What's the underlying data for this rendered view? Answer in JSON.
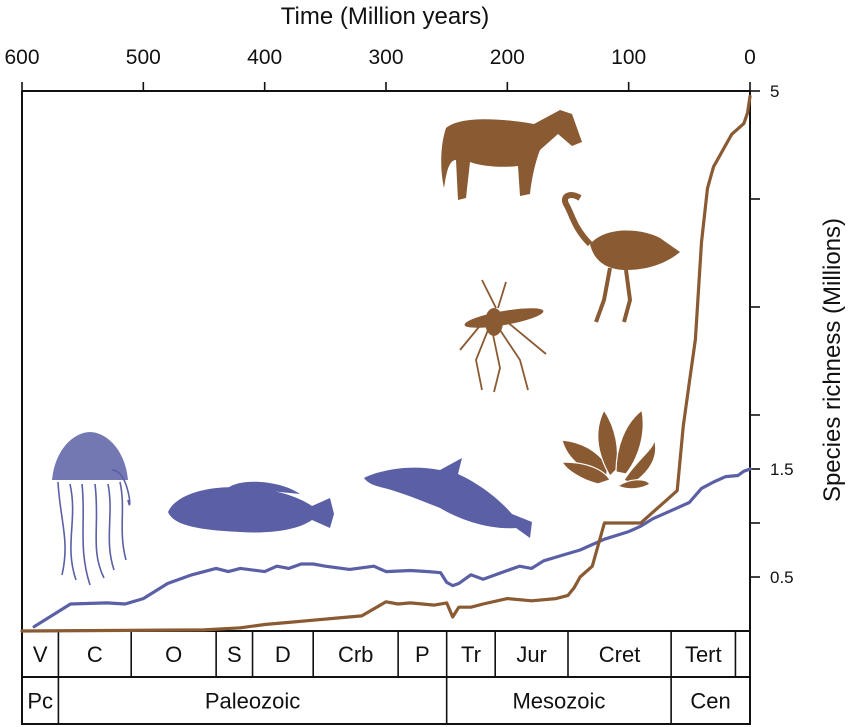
{
  "chart_data": {
    "type": "line",
    "xlabel": "Time (Million years)",
    "ylabel": "Species richness (Millions)",
    "x_axis_position": "top",
    "y_axis_position": "right",
    "x_reversed": true,
    "xlim": [
      600,
      0
    ],
    "ylim": [
      0,
      5
    ],
    "x_ticks": [
      600,
      500,
      400,
      300,
      200,
      100,
      0
    ],
    "x_tick_labels": [
      "600",
      "500",
      "400",
      "300",
      "200",
      "100",
      "0"
    ],
    "y_ticks": [
      0.5,
      1,
      1.5,
      2,
      3,
      4,
      5
    ],
    "y_tick_labels": [
      "0.5",
      "",
      "1.5",
      "",
      "",
      "",
      "5"
    ],
    "grid": false,
    "colors": {
      "marine": "#5b60a6",
      "terrestrial": "#8a5a33"
    },
    "series": [
      {
        "key": "marine",
        "x": [
          590,
          560,
          530,
          515,
          500,
          480,
          460,
          440,
          430,
          420,
          400,
          390,
          380,
          370,
          360,
          350,
          330,
          310,
          300,
          280,
          265,
          255,
          250,
          245,
          240,
          230,
          220,
          200,
          190,
          180,
          170,
          155,
          140,
          120,
          100,
          90,
          80,
          70,
          60,
          50,
          40,
          30,
          20,
          10,
          5,
          0
        ],
        "y": [
          0.04,
          0.25,
          0.26,
          0.25,
          0.3,
          0.44,
          0.52,
          0.58,
          0.55,
          0.58,
          0.55,
          0.6,
          0.58,
          0.62,
          0.62,
          0.6,
          0.57,
          0.6,
          0.55,
          0.56,
          0.55,
          0.54,
          0.45,
          0.42,
          0.44,
          0.52,
          0.48,
          0.56,
          0.6,
          0.58,
          0.65,
          0.7,
          0.75,
          0.85,
          0.92,
          0.97,
          1.04,
          1.09,
          1.14,
          1.19,
          1.32,
          1.38,
          1.43,
          1.44,
          1.48,
          1.5
        ]
      },
      {
        "key": "terrestrial",
        "x": [
          600,
          450,
          420,
          400,
          380,
          360,
          340,
          320,
          300,
          290,
          280,
          260,
          250,
          245,
          240,
          230,
          220,
          200,
          180,
          160,
          150,
          145,
          140,
          130,
          120,
          100,
          90,
          80,
          70,
          60,
          55,
          50,
          45,
          40,
          35,
          30,
          25,
          20,
          15,
          10,
          5,
          2,
          0
        ],
        "y": [
          0.0,
          0.01,
          0.03,
          0.06,
          0.08,
          0.1,
          0.12,
          0.14,
          0.27,
          0.25,
          0.26,
          0.24,
          0.26,
          0.13,
          0.22,
          0.22,
          0.25,
          0.3,
          0.28,
          0.3,
          0.33,
          0.4,
          0.5,
          0.6,
          1.0,
          1.0,
          1.0,
          1.1,
          1.2,
          1.3,
          1.9,
          2.3,
          2.7,
          3.6,
          4.1,
          4.3,
          4.4,
          4.5,
          4.6,
          4.65,
          4.7,
          4.8,
          4.95
        ]
      }
    ],
    "periods": [
      {
        "label": "V",
        "start": 600,
        "end": 570
      },
      {
        "label": "C",
        "start": 570,
        "end": 510
      },
      {
        "label": "O",
        "start": 510,
        "end": 440
      },
      {
        "label": "S",
        "start": 440,
        "end": 410
      },
      {
        "label": "D",
        "start": 410,
        "end": 360
      },
      {
        "label": "Crb",
        "start": 360,
        "end": 290
      },
      {
        "label": "P",
        "start": 290,
        "end": 250
      },
      {
        "label": "Tr",
        "start": 250,
        "end": 210
      },
      {
        "label": "Jur",
        "start": 210,
        "end": 150
      },
      {
        "label": "Cret",
        "start": 150,
        "end": 65
      },
      {
        "label": "Tert",
        "start": 65,
        "end": 12
      },
      {
        "label": "",
        "start": 12,
        "end": 0
      }
    ],
    "eras": [
      {
        "label": "Pc",
        "start": 600,
        "end": 570
      },
      {
        "label": "Paleozoic",
        "start": 570,
        "end": 250
      },
      {
        "label": "Mesozoic",
        "start": 250,
        "end": 65
      },
      {
        "label": "Cen",
        "start": 65,
        "end": 0
      }
    ],
    "illustrations": [
      {
        "icon": "jellyfish-icon",
        "group": "marine"
      },
      {
        "icon": "fish-icon",
        "group": "marine"
      },
      {
        "icon": "dolphin-icon",
        "group": "marine"
      },
      {
        "icon": "horse-icon",
        "group": "terrestrial"
      },
      {
        "icon": "ostrich-icon",
        "group": "terrestrial"
      },
      {
        "icon": "mosquito-icon",
        "group": "terrestrial"
      },
      {
        "icon": "water-lily-icon",
        "group": "terrestrial"
      }
    ]
  }
}
